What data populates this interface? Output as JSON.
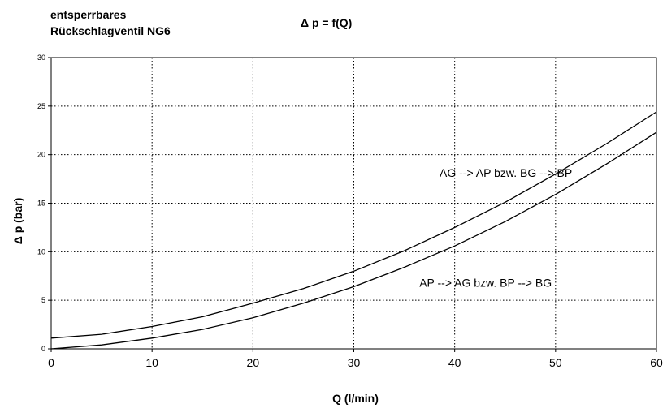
{
  "header": {
    "title_line1": "entsperrbares",
    "title_line2": "Rückschlagventil NG6",
    "formula": "Δ p = f(Q)"
  },
  "chart_data": {
    "type": "line",
    "xlabel": "Q (l/min)",
    "ylabel": "Δ p (bar)",
    "xlim": [
      0,
      60
    ],
    "ylim": [
      0,
      30
    ],
    "x_ticks": [
      0,
      10,
      20,
      30,
      40,
      50,
      60
    ],
    "y_ticks": [
      0,
      5,
      10,
      15,
      20,
      25,
      30
    ],
    "grid": true,
    "series": [
      {
        "name": "AG --> AP bzw. BG --> BP",
        "x": [
          0,
          5,
          10,
          15,
          20,
          25,
          30,
          35,
          40,
          45,
          50,
          55,
          60
        ],
        "y": [
          1.1,
          1.5,
          2.3,
          3.3,
          4.7,
          6.2,
          8.0,
          10.1,
          12.5,
          15.1,
          18.0,
          21.1,
          24.4
        ]
      },
      {
        "name": "AP --> AG bzw. BP --> BG",
        "x": [
          0,
          5,
          10,
          15,
          20,
          25,
          30,
          35,
          40,
          45,
          50,
          55,
          60
        ],
        "y": [
          0.0,
          0.4,
          1.1,
          2.0,
          3.2,
          4.7,
          6.4,
          8.4,
          10.6,
          13.1,
          15.9,
          19.0,
          22.3
        ]
      }
    ],
    "annotations": [
      {
        "text": "AG --> AP bzw. BG --> BP",
        "x": 38.5,
        "y": 17.7
      },
      {
        "text": "AP --> AG bzw. BP --> BG",
        "x": 36.5,
        "y": 6.4
      }
    ]
  }
}
